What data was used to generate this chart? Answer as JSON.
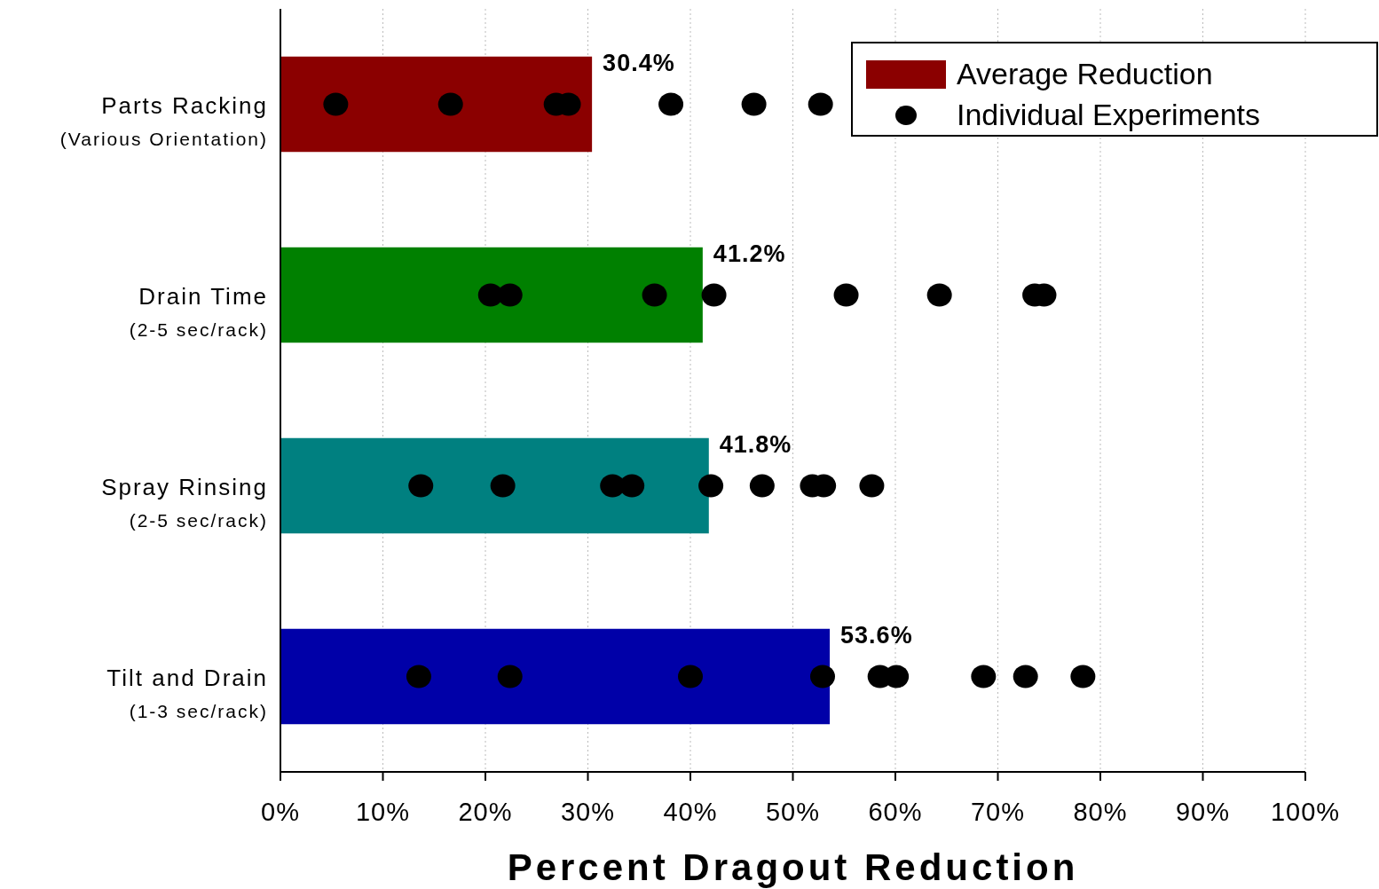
{
  "chart_data": {
    "type": "bar",
    "orientation": "horizontal",
    "xlabel": "Percent Dragout Reduction",
    "categories": [
      "Parts Racking\n(Various Orientation)",
      "Drain Time\n(2-5 sec/rack)",
      "Spray Rinsing\n(2-5 sec/rack)",
      "Tilt and Drain\n(1-3 sec/rack)"
    ],
    "series": [
      {
        "name": "Average Reduction",
        "color": "#8b0000",
        "colors": [
          "#8b0000",
          "#008000",
          "#008080",
          "#0000a8"
        ],
        "values": [
          30.4,
          41.2,
          41.8,
          53.6
        ],
        "value_labels": [
          "30.4%",
          "41.2%",
          "41.8%",
          "53.6%"
        ]
      },
      {
        "name": "Individual Experiments",
        "type": "scatter",
        "color": "#000000",
        "marker": "circle",
        "x": [
          "Parts Racking\n(Various Orientation)",
          "Parts Racking\n(Various Orientation)",
          "Parts Racking\n(Various Orientation)",
          "Parts Racking\n(Various Orientation)",
          "Parts Racking\n(Various Orientation)",
          "Parts Racking\n(Various Orientation)",
          "Parts Racking\n(Various Orientation)",
          "Drain Time\n(2-5 sec/rack)",
          "Drain Time\n(2-5 sec/rack)",
          "Drain Time\n(2-5 sec/rack)",
          "Drain Time\n(2-5 sec/rack)",
          "Drain Time\n(2-5 sec/rack)",
          "Drain Time\n(2-5 sec/rack)",
          "Drain Time\n(2-5 sec/rack)",
          "Drain Time\n(2-5 sec/rack)",
          "Spray Rinsing\n(2-5 sec/rack)",
          "Spray Rinsing\n(2-5 sec/rack)",
          "Spray Rinsing\n(2-5 sec/rack)",
          "Spray Rinsing\n(2-5 sec/rack)",
          "Spray Rinsing\n(2-5 sec/rack)",
          "Spray Rinsing\n(2-5 sec/rack)",
          "Spray Rinsing\n(2-5 sec/rack)",
          "Spray Rinsing\n(2-5 sec/rack)",
          "Spray Rinsing\n(2-5 sec/rack)",
          "Tilt and Drain\n(1-3 sec/rack)",
          "Tilt and Drain\n(1-3 sec/rack)",
          "Tilt and Drain\n(1-3 sec/rack)",
          "Tilt and Drain\n(1-3 sec/rack)",
          "Tilt and Drain\n(1-3 sec/rack)",
          "Tilt and Drain\n(1-3 sec/rack)",
          "Tilt and Drain\n(1-3 sec/rack)",
          "Tilt and Drain\n(1-3 sec/rack)",
          "Tilt and Drain\n(1-3 sec/rack)"
        ],
        "values": [
          5.4,
          16.6,
          26.9,
          28.1,
          38.1,
          46.2,
          52.7,
          20.5,
          22.4,
          36.5,
          42.3,
          55.2,
          64.3,
          73.6,
          74.5,
          13.7,
          21.7,
          32.4,
          34.3,
          42.0,
          47.0,
          51.9,
          53.0,
          57.7,
          13.5,
          22.4,
          40.0,
          52.9,
          58.5,
          60.1,
          68.6,
          72.7,
          78.3
        ]
      }
    ],
    "xlim": [
      0,
      100
    ],
    "xticks": [
      {
        "value": 0,
        "label": "0%"
      },
      {
        "value": 10,
        "label": "10%"
      },
      {
        "value": 20,
        "label": "20%"
      },
      {
        "value": 30,
        "label": "30%"
      },
      {
        "value": 40,
        "label": "40%"
      },
      {
        "value": 50,
        "label": "50%"
      },
      {
        "value": 60,
        "label": "60%"
      },
      {
        "value": 70,
        "label": "70%"
      },
      {
        "value": 80,
        "label": "80%"
      },
      {
        "value": 90,
        "label": "90%"
      },
      {
        "value": 100,
        "label": "100%"
      }
    ],
    "grid": "x",
    "legend": "top right"
  }
}
